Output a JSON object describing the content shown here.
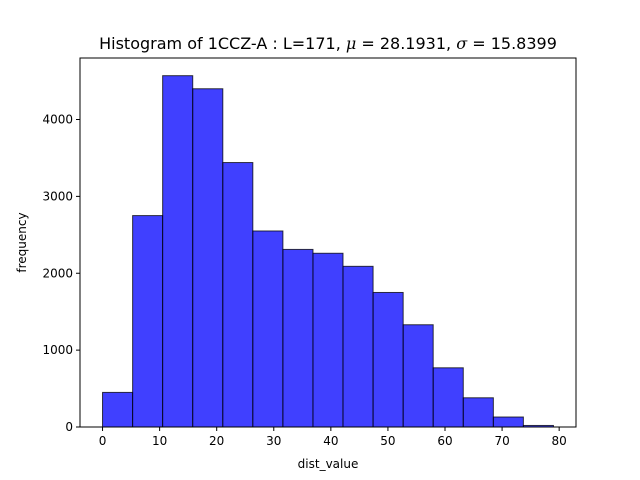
{
  "chart_data": {
    "type": "bar",
    "title_parts": {
      "prefix": "Histogram of 1CCZ-A : L=171, ",
      "mu_symbol": "μ",
      "mu_value": " = 28.1931, ",
      "sigma_symbol": "σ",
      "sigma_value": " = 15.8399"
    },
    "xlabel": "dist_value",
    "ylabel": "frequency",
    "bar_color": "#0000ff",
    "bar_edge_color": "#000000",
    "xlim": [
      -3.95,
      82.95
    ],
    "ylim": [
      0,
      4800
    ],
    "xticks": [
      0,
      10,
      20,
      30,
      40,
      50,
      60,
      70,
      80
    ],
    "yticks": [
      0,
      1000,
      2000,
      3000,
      4000
    ],
    "bins": [
      {
        "x0": 0.0,
        "x1": 5.27,
        "value": 450
      },
      {
        "x0": 5.27,
        "x1": 10.53,
        "value": 2750
      },
      {
        "x0": 10.53,
        "x1": 15.8,
        "value": 4570
      },
      {
        "x0": 15.8,
        "x1": 21.07,
        "value": 4400
      },
      {
        "x0": 21.07,
        "x1": 26.33,
        "value": 3440
      },
      {
        "x0": 26.33,
        "x1": 31.6,
        "value": 2550
      },
      {
        "x0": 31.6,
        "x1": 36.87,
        "value": 2310
      },
      {
        "x0": 36.87,
        "x1": 42.13,
        "value": 2260
      },
      {
        "x0": 42.13,
        "x1": 47.4,
        "value": 2090
      },
      {
        "x0": 47.4,
        "x1": 52.67,
        "value": 1750
      },
      {
        "x0": 52.67,
        "x1": 57.93,
        "value": 1330
      },
      {
        "x0": 57.93,
        "x1": 63.2,
        "value": 770
      },
      {
        "x0": 63.2,
        "x1": 68.47,
        "value": 380
      },
      {
        "x0": 68.47,
        "x1": 73.73,
        "value": 130
      },
      {
        "x0": 73.73,
        "x1": 79.0,
        "value": 20
      }
    ]
  }
}
